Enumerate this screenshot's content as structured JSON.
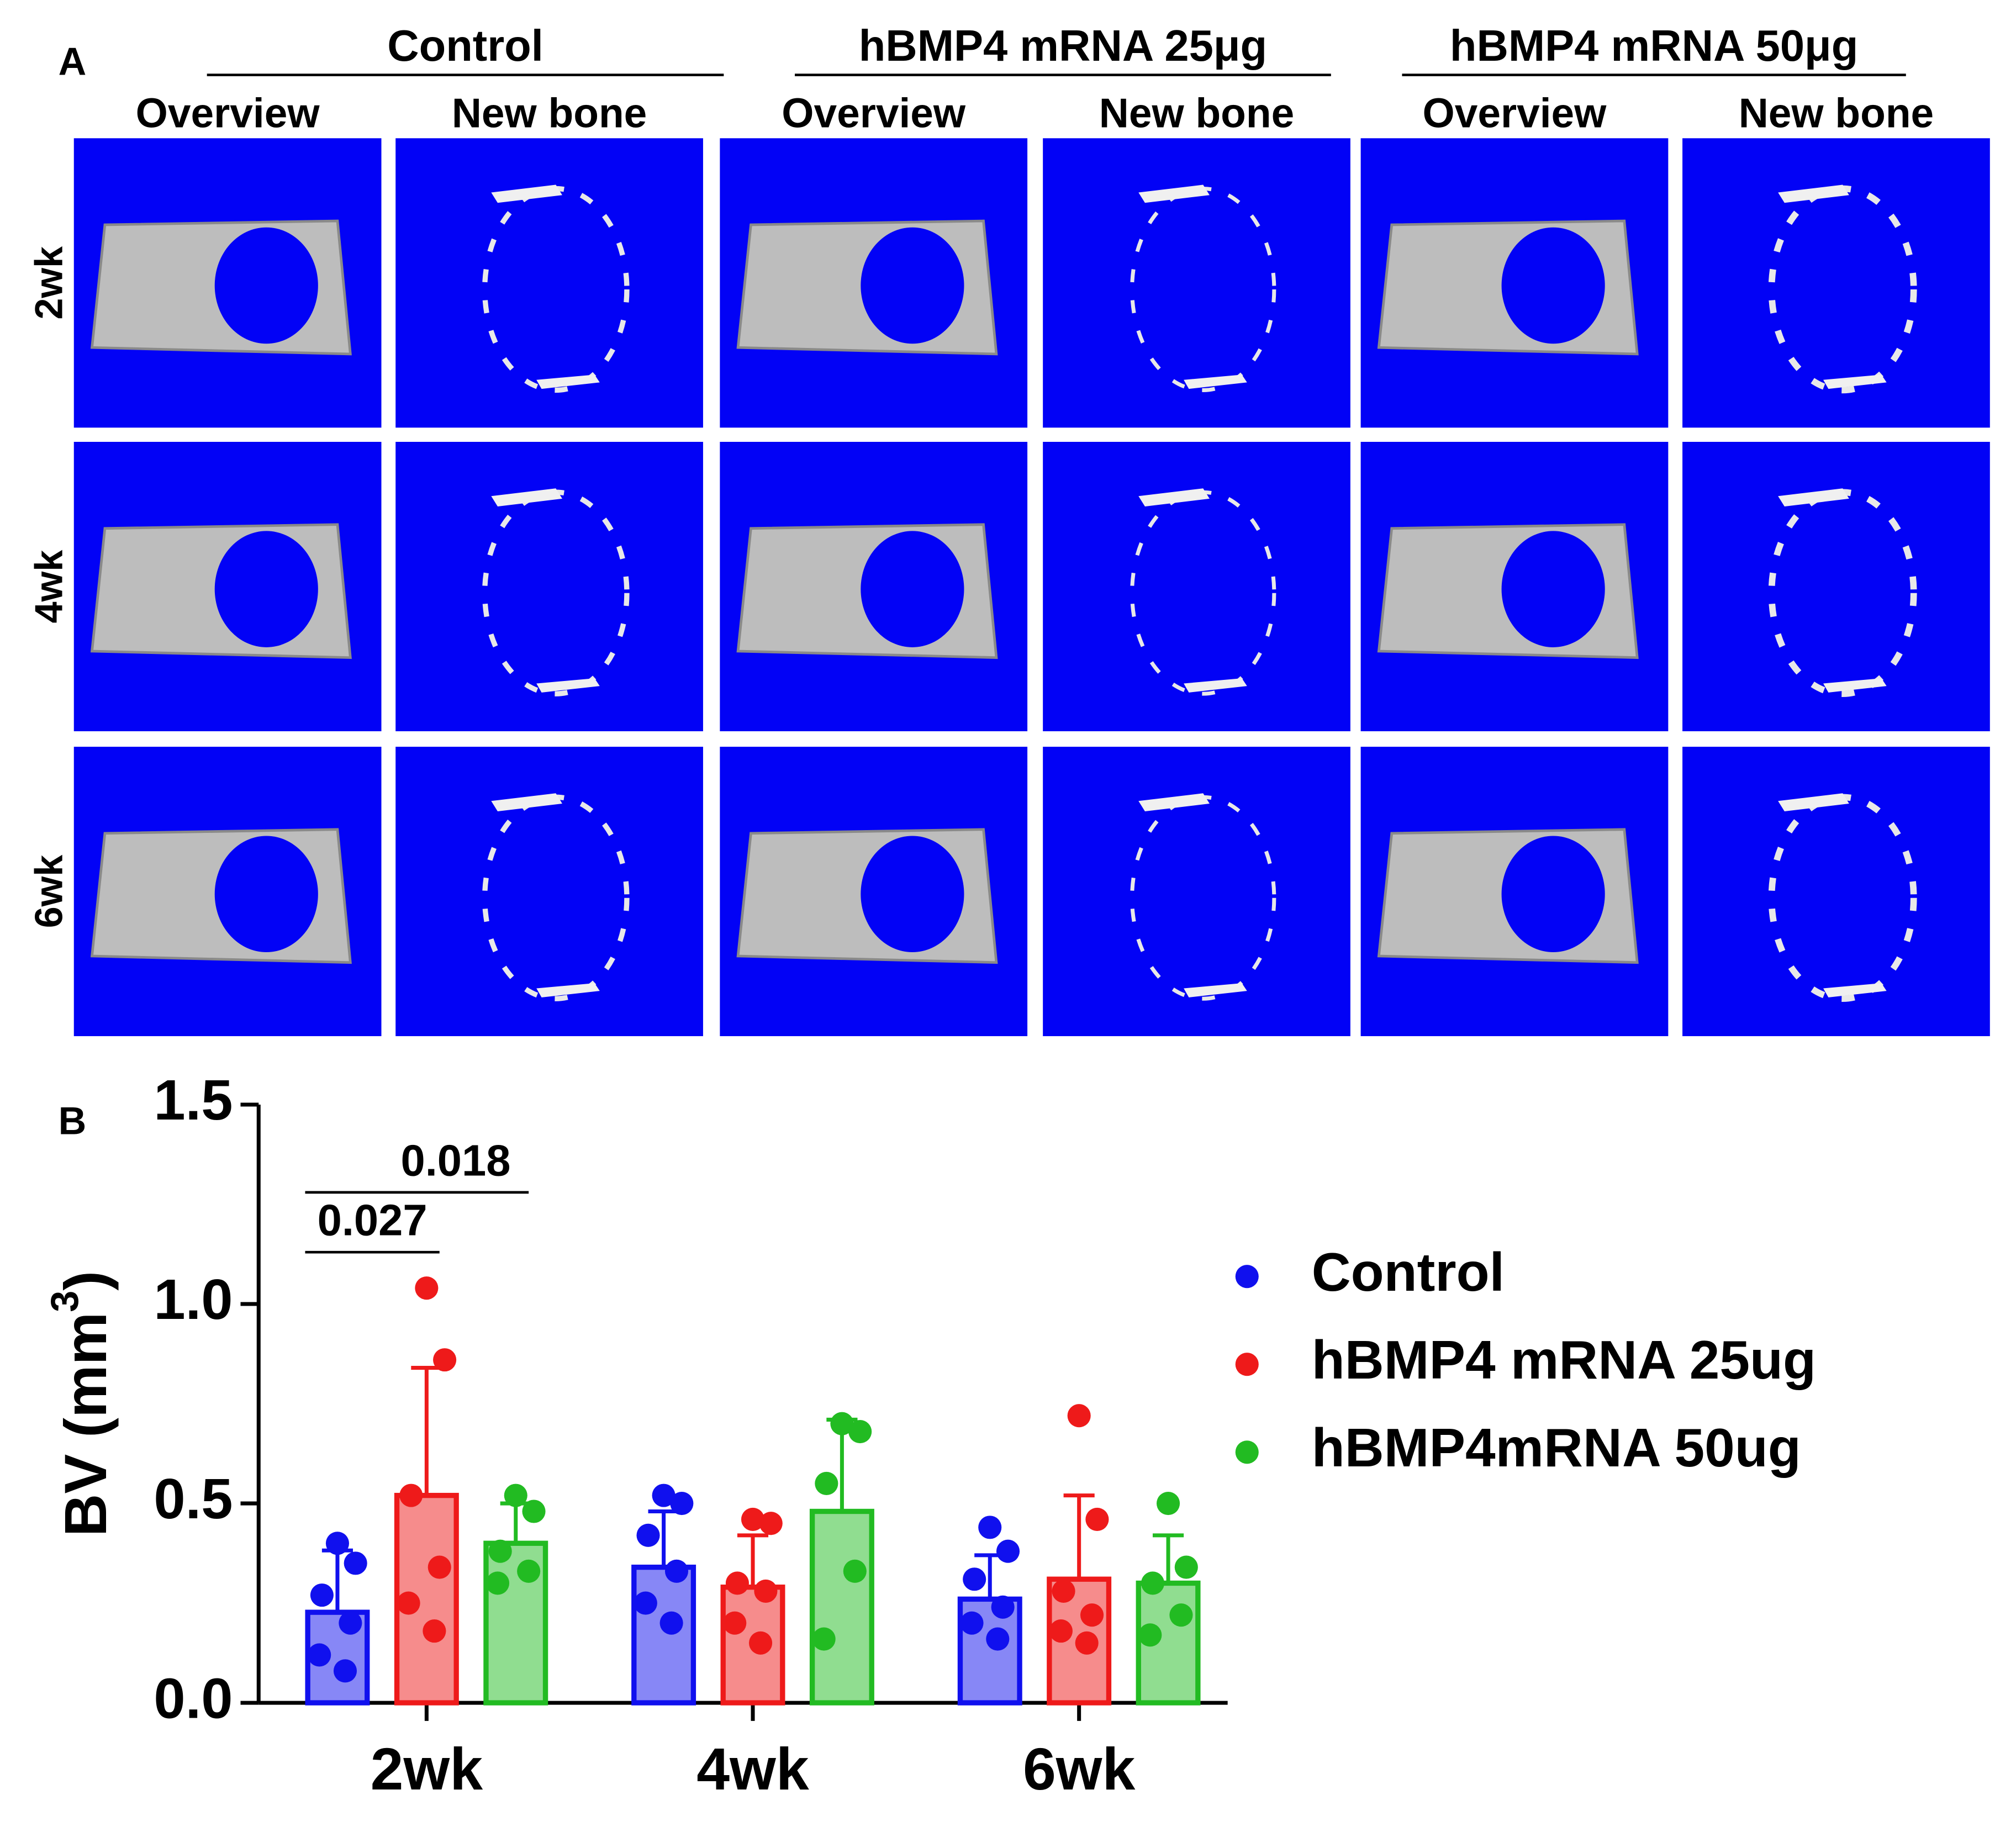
{
  "panel_a": {
    "label": "A",
    "groups": [
      "Control",
      "hBMP4 mRNA 25μg",
      "hBMP4 mRNA 50μg"
    ],
    "columns": [
      "Overview",
      "New bone",
      "Overview",
      "New bone",
      "Overview",
      "New bone"
    ],
    "rows": [
      "2wk",
      "4wk",
      "6wk"
    ]
  },
  "chart_data": {
    "type": "bar",
    "label": "B",
    "ylabel": {
      "text": "BV (mm",
      "sup": "3",
      "end": ")"
    },
    "categories": [
      "2wk",
      "4wk",
      "6wk"
    ],
    "ylim": [
      0,
      1.5
    ],
    "yticks": [
      {
        "value": 0,
        "label": "0.0"
      },
      0.5,
      {
        "value": 1,
        "label": "1.0"
      },
      1.5
    ],
    "legend": "right",
    "series": [
      {
        "name": "Control",
        "color": "#1010ee",
        "values": [
          0.227,
          0.34,
          0.26
        ],
        "errors": [
          0.155,
          0.14,
          0.11
        ],
        "points": [
          [
            0.4,
            0.35,
            0.27,
            0.2,
            0.12,
            0.08
          ],
          [
            0.52,
            0.5,
            0.42,
            0.33,
            0.25,
            0.2
          ],
          [
            0.44,
            0.38,
            0.31,
            0.24,
            0.2,
            0.16
          ]
        ]
      },
      {
        "name": "hBMP4 mRNA 25ug",
        "color": "#ee1a1a",
        "values": [
          0.52,
          0.29,
          0.31
        ],
        "errors": [
          0.32,
          0.13,
          0.21
        ],
        "points": [
          [
            1.04,
            0.86,
            0.52,
            0.34,
            0.25,
            0.18
          ],
          [
            0.46,
            0.45,
            0.3,
            0.28,
            0.2,
            0.15
          ],
          [
            0.72,
            0.46,
            0.28,
            0.22,
            0.18,
            0.15
          ]
        ]
      },
      {
        "name": "hBMP4mRNA 50ug",
        "color": "#22bb22",
        "values": [
          0.4,
          0.48,
          0.3
        ],
        "errors": [
          0.1,
          0.23,
          0.12
        ],
        "points": [
          [
            0.52,
            0.48,
            0.38,
            0.33,
            0.3
          ],
          [
            0.7,
            0.68,
            0.55,
            0.33,
            0.16
          ],
          [
            0.5,
            0.34,
            0.3,
            0.22,
            0.17
          ]
        ]
      }
    ],
    "annotations": [
      {
        "text": "0.027",
        "category": 0,
        "series": [
          0,
          1
        ],
        "y": 1.13
      },
      {
        "text": "0.018",
        "category": 0,
        "series": [
          0,
          2
        ],
        "y": 1.28
      }
    ]
  }
}
